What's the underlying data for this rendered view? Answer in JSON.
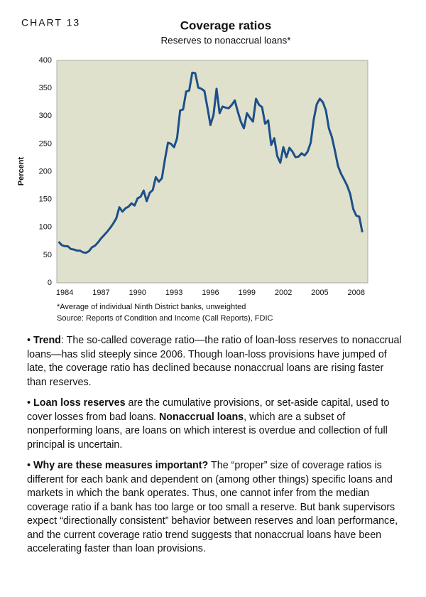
{
  "chart_label": "CHART 13",
  "chart_data": {
    "type": "line",
    "title": "Coverage ratios",
    "subtitle": "Reserves to nonaccrual loans*",
    "ylabel": "Percent",
    "notes": [
      "*Average of individual Ninth District banks, unweighted",
      "Source: Reports of Condition and Income (Call Reports), FDIC"
    ],
    "x": [
      1983.5,
      1983.75,
      1984,
      1984.25,
      1984.5,
      1984.75,
      1985,
      1985.25,
      1985.5,
      1985.75,
      1986,
      1986.25,
      1986.5,
      1986.75,
      1987,
      1987.25,
      1987.5,
      1987.75,
      1988,
      1988.25,
      1988.5,
      1988.75,
      1989,
      1989.25,
      1989.5,
      1989.75,
      1990,
      1990.25,
      1990.5,
      1990.75,
      1991,
      1991.25,
      1991.5,
      1991.75,
      1992,
      1992.25,
      1992.5,
      1992.75,
      1993,
      1993.25,
      1993.5,
      1993.75,
      1994,
      1994.25,
      1994.5,
      1994.75,
      1995,
      1995.25,
      1995.5,
      1995.75,
      1996,
      1996.25,
      1996.5,
      1996.75,
      1997,
      1997.25,
      1997.5,
      1997.75,
      1998,
      1998.25,
      1998.5,
      1998.75,
      1999,
      1999.25,
      1999.5,
      1999.75,
      2000,
      2000.25,
      2000.5,
      2000.75,
      2001,
      2001.25,
      2001.5,
      2001.75,
      2002,
      2002.25,
      2002.5,
      2002.75,
      2003,
      2003.25,
      2003.5,
      2003.75,
      2004,
      2004.25,
      2004.5,
      2004.75,
      2005,
      2005.25,
      2005.5,
      2005.75,
      2006,
      2006.25,
      2006.5,
      2006.75,
      2007,
      2007.25,
      2007.5,
      2007.75,
      2008,
      2008.25,
      2008.5
    ],
    "series": [
      {
        "color": "#1d4f8a",
        "values": [
          74,
          68,
          66,
          66,
          61,
          60,
          58,
          58,
          55,
          54,
          57,
          64,
          67,
          73,
          80,
          86,
          92,
          99,
          107,
          116,
          136,
          128,
          134,
          137,
          143,
          139,
          152,
          155,
          166,
          147,
          162,
          167,
          190,
          182,
          188,
          222,
          252,
          250,
          244,
          260,
          310,
          312,
          344,
          346,
          378,
          377,
          351,
          349,
          345,
          315,
          284,
          302,
          349,
          305,
          317,
          315,
          314,
          320,
          328,
          308,
          290,
          278,
          305,
          297,
          290,
          331,
          320,
          316,
          286,
          292,
          248,
          260,
          228,
          216,
          244,
          226,
          243,
          236,
          226,
          227,
          233,
          229,
          236,
          252,
          294,
          321,
          331,
          325,
          310,
          278,
          262,
          237,
          210,
          196,
          186,
          175,
          160,
          133,
          121,
          119,
          91
        ]
      }
    ],
    "xlim": [
      1983.35,
      2008.95
    ],
    "xticks": [
      1984,
      1987,
      1990,
      1993,
      1996,
      1999,
      2002,
      2005,
      2008
    ],
    "ylim": [
      0,
      400
    ],
    "yticks": [
      0,
      50,
      100,
      150,
      200,
      250,
      300,
      350,
      400
    ],
    "grid": false,
    "plot_background": "#e0e1cc"
  },
  "paragraphs": [
    [
      {
        "text": "• ",
        "bold": false
      },
      {
        "text": "Trend",
        "bold": true
      },
      {
        "text": ": The so-called coverage ratio—the ratio of loan-loss reserves to nonaccrual loans—has slid steeply since 2006. Though loan-loss provisions have jumped of late, the coverage ratio has declined because nonaccrual loans are rising faster than reserves.",
        "bold": false
      }
    ],
    [
      {
        "text": "• ",
        "bold": false
      },
      {
        "text": "Loan loss reserves",
        "bold": true
      },
      {
        "text": " are the cumulative provisions, or set-aside capital, used to cover losses from bad loans. ",
        "bold": false
      },
      {
        "text": "Nonaccrual loans",
        "bold": true
      },
      {
        "text": ", which are a subset of nonperforming loans, are loans on which interest is overdue and collection of full principal is uncertain.",
        "bold": false
      }
    ],
    [
      {
        "text": "• ",
        "bold": false
      },
      {
        "text": "Why are these measures important?",
        "bold": true
      },
      {
        "text": " The “proper” size of coverage ratios is different for each bank and dependent on (among other things) specific loans and markets in which the bank operates. Thus, one cannot infer from the median coverage ratio if a bank has too large or too small a reserve. But bank supervisors expect “directionally consistent” behavior between reserves and loan performance, and the current coverage ratio trend suggests that nonaccrual loans have been accelerating faster than loan provisions.",
        "bold": false
      }
    ]
  ]
}
